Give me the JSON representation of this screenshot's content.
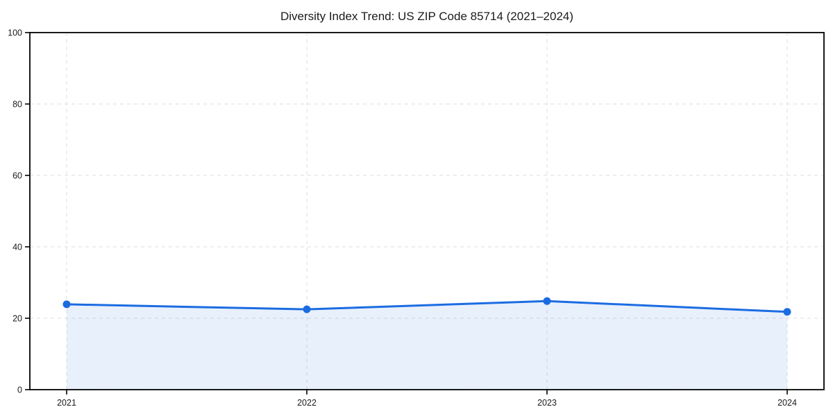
{
  "title": "Diversity Index Trend: US ZIP Code 85714 (2021–2024)",
  "chart_data": {
    "type": "area",
    "title": "Diversity Index Trend: US ZIP Code 85714 (2021–2024)",
    "x": [
      "2021",
      "2022",
      "2023",
      "2024"
    ],
    "series": [
      {
        "name": "Diversity Index",
        "values": [
          23.9,
          22.5,
          24.8,
          21.8
        ]
      }
    ],
    "xlabel": "",
    "ylabel": "",
    "ylim": [
      0,
      100
    ],
    "yticks": [
      0,
      20,
      40,
      60,
      80,
      100
    ],
    "grid": true,
    "grid_style": "dashed",
    "legend_position": "none",
    "colors": {
      "line": "#1b6ce1",
      "marker": "#1b6ce1",
      "fill": "rgba(27,108,225,0.10)",
      "grid": "#e4e4e4",
      "axis": "#000000",
      "text": "#1a1a1a",
      "background": "#ffffff"
    }
  }
}
